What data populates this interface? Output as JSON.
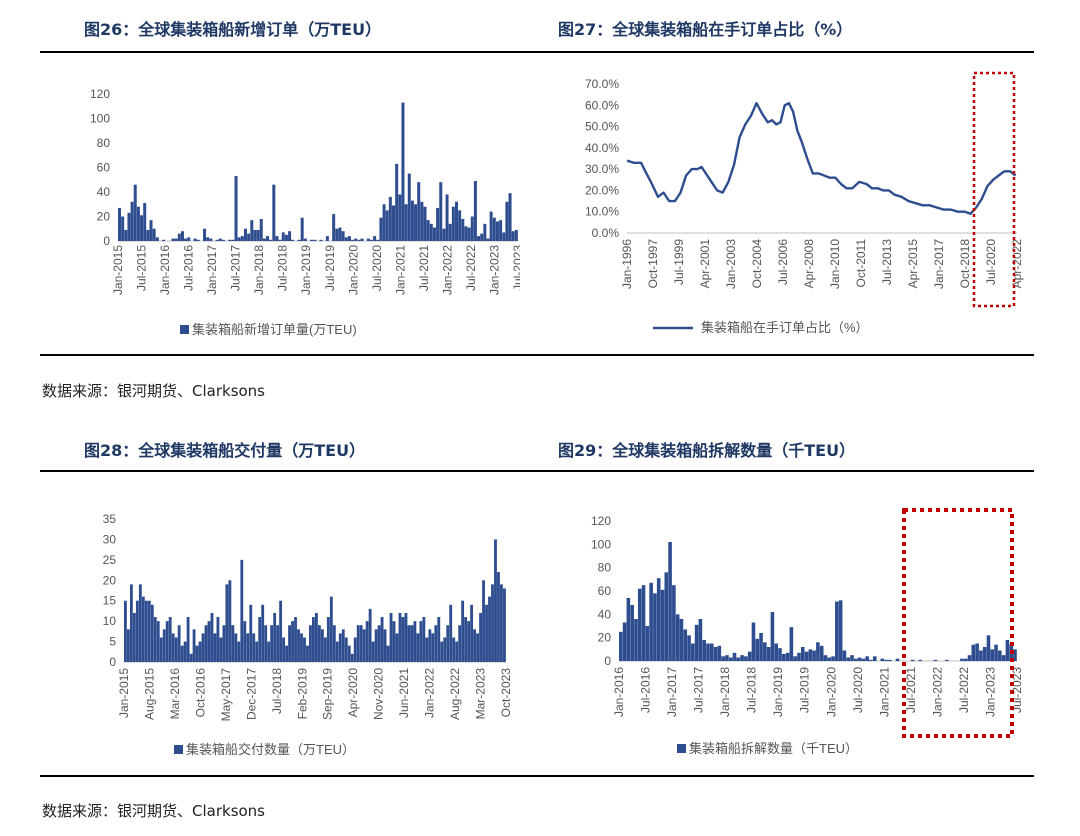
{
  "titles": {
    "fig26": "图26：全球集装箱船新增订单（万TEU）",
    "fig27": "图27：全球集装箱船在手订单占比（%）",
    "fig28": "图28：全球集装箱船交付量（万TEU）",
    "fig29": "图29：全球集装箱船拆解数量（千TEU）"
  },
  "sources": {
    "top": "数据来源：银河期货、Clarksons",
    "bottom": "数据来源：银河期货、Clarksons"
  },
  "colors": {
    "bar": "#2e4d8f",
    "highlight": "#c00000",
    "title": "#1f3864"
  },
  "chart_data": [
    {
      "id": "fig26",
      "type": "bar",
      "legend": "集装箱船新增订单量(万TEU)",
      "ylim": [
        0,
        120
      ],
      "yticks": [
        0,
        20,
        40,
        60,
        80,
        100,
        120
      ],
      "xticks": [
        "Jan-2015",
        "Jul-2015",
        "Jan-2016",
        "Jul-2016",
        "Jan-2017",
        "Jul-2017",
        "Jan-2018",
        "Jul-2018",
        "Jan-2019",
        "Jul-2019",
        "Jan-2020",
        "Jul-2020",
        "Jan-2021",
        "Jul-2021",
        "Jan-2022",
        "Jul-2022",
        "Jan-2023",
        "Jul-2023"
      ],
      "values": [
        27,
        20,
        9,
        23,
        32,
        46,
        28,
        21,
        31,
        9,
        17,
        10,
        3,
        0,
        1,
        0,
        0,
        2,
        2,
        6,
        8,
        2,
        3,
        0,
        2,
        1,
        0,
        10,
        3,
        2,
        0,
        1,
        2,
        1,
        0,
        1,
        1,
        53,
        3,
        4,
        10,
        6,
        17,
        9,
        9,
        18,
        2,
        4,
        1,
        46,
        4,
        1,
        7,
        5,
        8,
        1,
        0,
        1,
        19,
        2,
        0,
        1,
        1,
        0,
        1,
        0,
        4,
        0,
        22,
        10,
        11,
        8,
        3,
        4,
        1,
        2,
        1,
        2,
        0,
        2,
        1,
        4,
        1,
        19,
        30,
        25,
        36,
        29,
        63,
        38,
        113,
        30,
        55,
        33,
        30,
        48,
        32,
        28,
        17,
        14,
        11,
        27,
        48,
        10,
        38,
        14,
        28,
        32,
        25,
        18,
        12,
        11,
        20,
        49,
        4,
        6,
        14,
        2,
        24,
        19,
        16,
        17,
        7,
        32,
        39,
        8,
        9
      ],
      "legend_pos": "bottom"
    },
    {
      "id": "fig27",
      "type": "line",
      "legend": "集装箱船在手订单占比（%）",
      "ylim": [
        0,
        70
      ],
      "yticks": [
        "0.0%",
        "10.0%",
        "20.0%",
        "30.0%",
        "40.0%",
        "50.0%",
        "60.0%",
        "70.0%"
      ],
      "xticks": [
        "Jan-1996",
        "Oct-1997",
        "Jul-1999",
        "Apr-2001",
        "Jan-2003",
        "Oct-2004",
        "Jul-2006",
        "Apr-2008",
        "Jan-2010",
        "Oct-2011",
        "Jul-2013",
        "Apr-2015",
        "Jan-2017",
        "Oct-2018",
        "Jul-2020",
        "Apr-2022"
      ],
      "x": [
        1996.0,
        1996.5,
        1997.0,
        1997.3,
        1997.7,
        1998.2,
        1998.6,
        1999.0,
        1999.4,
        1999.8,
        2000.2,
        2000.6,
        2001.0,
        2001.3,
        2001.6,
        2002.0,
        2002.4,
        2002.8,
        2003.2,
        2003.6,
        2004.0,
        2004.4,
        2004.8,
        2005.2,
        2005.6,
        2006.0,
        2006.3,
        2006.6,
        2006.9,
        2007.2,
        2007.5,
        2007.8,
        2008.1,
        2008.4,
        2008.8,
        2009.2,
        2009.6,
        2010.0,
        2010.4,
        2010.8,
        2011.2,
        2011.6,
        2012.0,
        2012.5,
        2013.0,
        2013.4,
        2013.8,
        2014.2,
        2014.6,
        2015.0,
        2015.5,
        2016.0,
        2016.5,
        2017.0,
        2017.5,
        2018.0,
        2018.5,
        2019.0,
        2019.5,
        2020.0,
        2020.4,
        2020.8,
        2021.2,
        2021.6,
        2022.0,
        2022.4,
        2022.8,
        2023.2,
        2023.6
      ],
      "series": [
        {
          "values": [
            34,
            33,
            33,
            29,
            24,
            17,
            19,
            15,
            15,
            19,
            27,
            30,
            30,
            31,
            28,
            24,
            20,
            19,
            24,
            32,
            45,
            51,
            55,
            61,
            56,
            52,
            53,
            51,
            52,
            60,
            61,
            57,
            48,
            43,
            35,
            28,
            28,
            27,
            26,
            26,
            23,
            21,
            21,
            24,
            23,
            21,
            21,
            20,
            20,
            18,
            17,
            15,
            14,
            13,
            13,
            12,
            11,
            11,
            10,
            10,
            9,
            12,
            16,
            22,
            25,
            27,
            29,
            29,
            27
          ]
        }
      ],
      "highlight": "Apr-2022 region",
      "legend_pos": "bottom"
    },
    {
      "id": "fig28",
      "type": "bar",
      "legend": "集装箱船交付数量（万TEU）",
      "ylim": [
        0,
        35
      ],
      "yticks": [
        0,
        5,
        10,
        15,
        20,
        25,
        30,
        35
      ],
      "xticks": [
        "Jan-2015",
        "Aug-2015",
        "Mar-2016",
        "Oct-2016",
        "May-2017",
        "Dec-2017",
        "Jul-2018",
        "Feb-2019",
        "Sep-2019",
        "Apr-2020",
        "Nov-2020",
        "Jun-2021",
        "Jan-2022",
        "Aug-2022",
        "Mar-2023",
        "Oct-2023"
      ],
      "values": [
        15,
        8,
        19,
        12,
        15,
        19,
        16,
        15,
        15,
        14,
        11,
        10,
        6,
        8,
        10,
        11,
        7,
        6,
        9,
        4,
        5,
        11,
        2,
        8,
        4,
        5,
        7,
        9,
        10,
        12,
        7,
        11,
        6,
        9,
        19,
        20,
        9,
        7,
        5,
        25,
        10,
        7,
        14,
        7,
        5,
        11,
        14,
        9,
        5,
        9,
        12,
        9,
        15,
        6,
        4,
        9,
        10,
        11,
        8,
        7,
        6,
        4,
        9,
        11,
        12,
        9,
        8,
        6,
        11,
        16,
        9,
        5,
        7,
        8,
        6,
        4,
        2,
        6,
        9,
        9,
        8,
        10,
        13,
        5,
        8,
        9,
        11,
        8,
        4,
        12,
        10,
        7,
        12,
        11,
        12,
        9,
        9,
        10,
        7,
        10,
        11,
        6,
        8,
        7,
        9,
        11,
        5,
        6,
        9,
        14,
        6,
        5,
        9,
        15,
        11,
        10,
        14,
        8,
        7,
        12,
        20,
        14,
        16,
        19,
        30,
        22,
        19,
        18
      ],
      "legend_pos": "bottom"
    },
    {
      "id": "fig29",
      "type": "bar",
      "legend": "集装箱船拆解数量（千TEU）",
      "ylim": [
        0,
        120
      ],
      "yticks": [
        0,
        20,
        40,
        60,
        80,
        100,
        120
      ],
      "xticks": [
        "Jan-2016",
        "Jul-2016",
        "Jan-2017",
        "Jul-2017",
        "Jan-2018",
        "Jul-2018",
        "Jan-2019",
        "Jul-2019",
        "Jan-2020",
        "Jul-2020",
        "Jan-2021",
        "Jul-2021",
        "Jan-2022",
        "Jul-2022",
        "Jan-2023",
        "Jul-2023"
      ],
      "values": [
        25,
        33,
        54,
        48,
        36,
        62,
        65,
        30,
        67,
        58,
        71,
        61,
        76,
        102,
        65,
        40,
        36,
        27,
        22,
        15,
        31,
        36,
        18,
        15,
        15,
        12,
        13,
        4,
        5,
        3,
        7,
        3,
        5,
        4,
        8,
        33,
        19,
        24,
        16,
        12,
        42,
        15,
        11,
        6,
        7,
        29,
        4,
        7,
        12,
        8,
        10,
        9,
        16,
        13,
        5,
        3,
        4,
        51,
        52,
        9,
        3,
        5,
        2,
        3,
        2,
        4,
        1,
        4,
        0,
        2,
        1,
        1,
        0,
        2,
        0,
        0,
        0,
        1,
        0,
        1,
        0,
        0,
        0,
        1,
        0,
        0,
        1,
        0,
        0,
        0,
        2,
        2,
        5,
        14,
        15,
        9,
        12,
        22,
        10,
        14,
        9,
        5,
        18,
        14,
        10
      ],
      "highlight": "2022–2023 region",
      "legend_pos": "bottom"
    }
  ]
}
